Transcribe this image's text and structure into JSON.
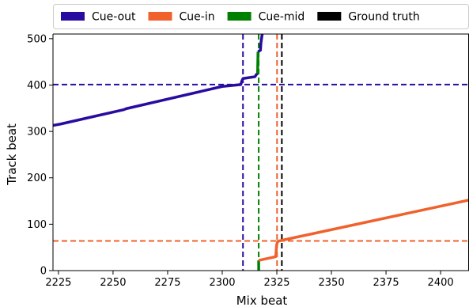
{
  "chart_data": {
    "type": "line",
    "title": "",
    "xlabel": "Mix beat",
    "ylabel": "Track beat",
    "xlim": [
      2222.5,
      2413
    ],
    "ylim": [
      0,
      510
    ],
    "x_ticks": [
      2225,
      2250,
      2275,
      2300,
      2325,
      2350,
      2375,
      2400
    ],
    "y_ticks": [
      0,
      100,
      200,
      300,
      400,
      500
    ],
    "grid": false,
    "legend": {
      "placement": "top",
      "entries": [
        {
          "label": "Cue-out",
          "color": "#2a0ba0"
        },
        {
          "label": "Cue-in",
          "color": "#f0612c"
        },
        {
          "label": "Cue-mid",
          "color": "#008000"
        },
        {
          "label": "Ground truth",
          "color": "#000000"
        }
      ]
    },
    "series": [
      {
        "name": "Cue-out",
        "color": "#2a0ba0",
        "points": [
          [
            2222.5,
            313
          ],
          [
            2226,
            316
          ],
          [
            2255,
            347
          ],
          [
            2256,
            349
          ],
          [
            2300,
            397
          ],
          [
            2308.5,
            401
          ],
          [
            2309,
            409
          ],
          [
            2309.5,
            414
          ],
          [
            2315,
            418
          ],
          [
            2315.5,
            422
          ],
          [
            2316.2,
            425
          ]
        ]
      },
      {
        "name": "Cue-mid",
        "color": "#008000",
        "points": [
          [
            2316.2,
            425
          ],
          [
            2316.4,
            472
          ]
        ]
      },
      {
        "name": "Cue-out",
        "color": "#2a0ba0",
        "points": [
          [
            2316.4,
            472
          ],
          [
            2317.5,
            475
          ],
          [
            2317.7,
            490
          ],
          [
            2318,
            500
          ],
          [
            2318.3,
            510
          ]
        ]
      },
      {
        "name": "Cue-mid",
        "color": "#008000",
        "points": [
          [
            2316.7,
            0
          ],
          [
            2316.7,
            22
          ]
        ]
      },
      {
        "name": "Cue-in",
        "color": "#f0612c",
        "points": [
          [
            2316.7,
            22
          ],
          [
            2324.5,
            30
          ],
          [
            2324.9,
            55
          ],
          [
            2325.4,
            63
          ],
          [
            2327,
            65
          ],
          [
            2413,
            152
          ]
        ]
      }
    ],
    "reference_lines": [
      {
        "orientation": "horizontal",
        "value": 401,
        "color": "#2a0ba0"
      },
      {
        "orientation": "horizontal",
        "value": 64,
        "color": "#f0612c"
      },
      {
        "orientation": "vertical",
        "value": 2309.5,
        "color": "#2a0ba0"
      },
      {
        "orientation": "vertical",
        "value": 2316.7,
        "color": "#008000"
      },
      {
        "orientation": "vertical",
        "value": 2325.1,
        "color": "#f0612c"
      },
      {
        "orientation": "vertical",
        "value": 2327.3,
        "color": "#000000"
      }
    ]
  }
}
